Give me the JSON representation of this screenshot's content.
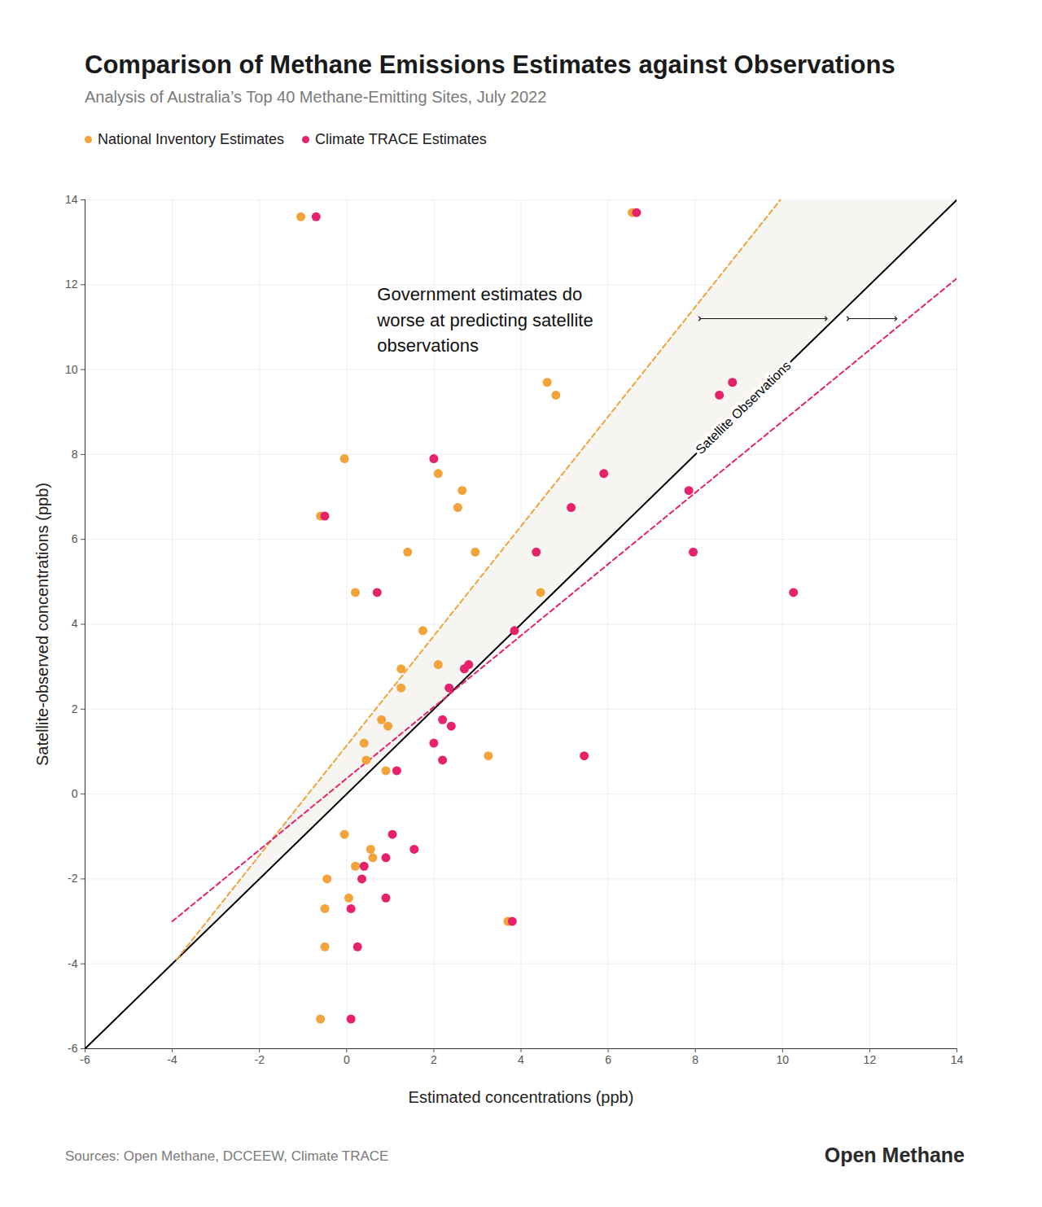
{
  "chart_data": {
    "type": "scatter",
    "title": "Comparison of Methane Emissions Estimates against Observations",
    "subtitle": "Analysis of Australia’s Top 40 Methane-Emitting Sites, July 2022",
    "x_label": "Estimated concentrations (ppb)",
    "y_label": "Satellite-observed concentrations (ppb)",
    "xlim": [
      -6,
      14
    ],
    "ylim": [
      -6,
      14
    ],
    "xticks": [
      -6,
      -4,
      -2,
      0,
      2,
      4,
      6,
      8,
      10,
      12,
      14
    ],
    "yticks": [
      -6,
      -4,
      -2,
      0,
      2,
      4,
      6,
      8,
      10,
      12,
      14
    ],
    "grid": true,
    "legend": "top-left",
    "series": [
      {
        "name": "National Inventory Estimates",
        "type": "scatter",
        "marker": "circle",
        "color": "#F2A33A",
        "x": [
          -1.05,
          6.55,
          4.6,
          4.8,
          -0.05,
          2.1,
          2.65,
          2.55,
          -0.6,
          1.4,
          2.95,
          0.2,
          4.45,
          1.75,
          2.1,
          1.25,
          1.25,
          0.8,
          0.95,
          0.4,
          3.25,
          0.45,
          0.9,
          -0.05,
          0.55,
          0.6,
          0.2,
          -0.45,
          0.05,
          -0.5,
          3.7,
          -0.5,
          -0.6
        ],
        "y": [
          13.6,
          13.7,
          9.7,
          9.4,
          7.9,
          7.55,
          7.15,
          6.75,
          6.55,
          5.7,
          5.7,
          4.75,
          4.75,
          3.85,
          3.05,
          2.95,
          2.5,
          1.75,
          1.6,
          1.2,
          0.9,
          0.8,
          0.55,
          -0.95,
          -1.3,
          -1.5,
          -1.7,
          -2.0,
          -2.45,
          -2.7,
          -3.0,
          -3.6,
          -5.3
        ]
      },
      {
        "name": "Climate TRACE Estimates",
        "type": "scatter",
        "marker": "circle",
        "color": "#E5226B",
        "x": [
          -0.7,
          6.65,
          8.85,
          8.55,
          2.0,
          5.9,
          7.85,
          5.15,
          -0.5,
          4.35,
          7.95,
          0.7,
          10.25,
          3.85,
          2.8,
          2.7,
          2.35,
          2.2,
          2.4,
          2.0,
          5.45,
          2.2,
          1.15,
          1.05,
          1.55,
          0.9,
          0.4,
          0.35,
          0.9,
          0.1,
          3.8,
          0.25,
          0.1
        ],
        "y": [
          13.6,
          13.7,
          9.7,
          9.4,
          7.9,
          7.55,
          7.15,
          6.75,
          6.55,
          5.7,
          5.7,
          4.75,
          4.75,
          3.85,
          3.05,
          2.95,
          2.5,
          1.75,
          1.6,
          1.2,
          0.9,
          0.8,
          0.55,
          -0.95,
          -1.3,
          -1.5,
          -1.7,
          -2.0,
          -2.45,
          -2.7,
          -3.0,
          -3.6,
          -5.3
        ]
      },
      {
        "name": "Satellite Observations",
        "type": "line",
        "line_style": "solid",
        "color": "#000000",
        "x": [
          -6,
          14
        ],
        "y": [
          -6,
          14
        ]
      },
      {
        "type": "line",
        "line_style": "dashed",
        "color": "#F2A33A",
        "x": [
          -3.9,
          9.95
        ],
        "y": [
          -3.9,
          14
        ]
      },
      {
        "type": "line",
        "line_style": "dashed",
        "color": "#E5226B",
        "x": [
          -4,
          14
        ],
        "y": [
          -3.0,
          12.15
        ]
      }
    ],
    "band": {
      "color": "#F6F5F1",
      "x": [
        -3.9,
        9.95,
        14
      ],
      "y1": [
        -3.9,
        9.95,
        14
      ],
      "y2": [
        -3.9,
        14,
        14
      ]
    },
    "arrows": [
      {
        "x1": 8.1,
        "x2": 11.0,
        "y": 11.2
      },
      {
        "x1": 11.5,
        "x2": 12.6,
        "y": 11.2
      }
    ],
    "annotations": [
      {
        "text": "Government estimates do\nworse at predicting satellite\nobservations",
        "x": 0.7,
        "y": 12.05
      }
    ],
    "caption": "Sources: Open Methane, DCCEEW, Climate TRACE",
    "brand": "Open Methane"
  }
}
